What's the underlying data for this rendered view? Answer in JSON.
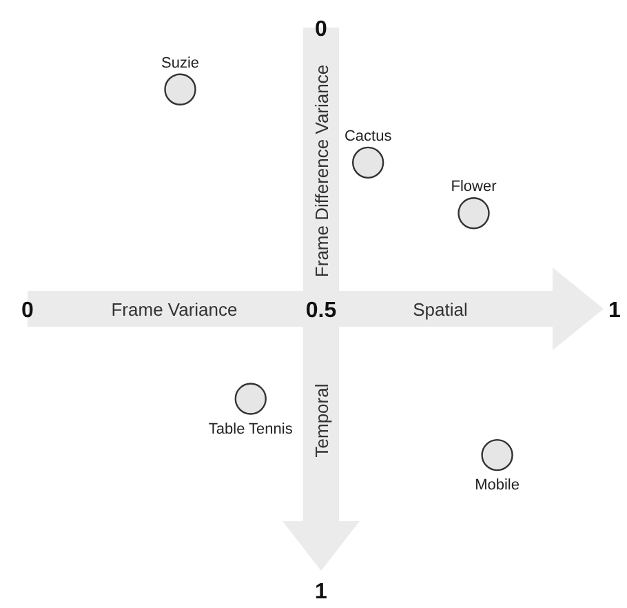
{
  "chart_data": {
    "type": "scatter",
    "xlabel": "Frame Variance",
    "ylabel": "Frame Difference Variance",
    "annotations": [
      "Spatial",
      "Temporal"
    ],
    "xlim": [
      0,
      1
    ],
    "xticks": [
      0,
      0.5,
      1
    ],
    "ylim": [
      1,
      0
    ],
    "yticks": [
      0,
      1
    ],
    "marker": "circle",
    "series": [
      {
        "name": "Suzie",
        "color": "#e6e6e6",
        "x": [
          0.26
        ],
        "values": [
          0.11
        ]
      },
      {
        "name": "Cactus",
        "color": "#e6e6e6",
        "x": [
          0.58
        ],
        "values": [
          0.24
        ]
      },
      {
        "name": "Flower",
        "color": "#e6e6e6",
        "x": [
          0.76
        ],
        "values": [
          0.33
        ]
      },
      {
        "name": "Table Tennis",
        "color": "#e6e6e6",
        "x": [
          0.38
        ],
        "values": [
          0.66
        ]
      },
      {
        "name": "Mobile",
        "color": "#e6e6e6",
        "x": [
          0.8
        ],
        "values": [
          0.76
        ]
      }
    ]
  }
}
